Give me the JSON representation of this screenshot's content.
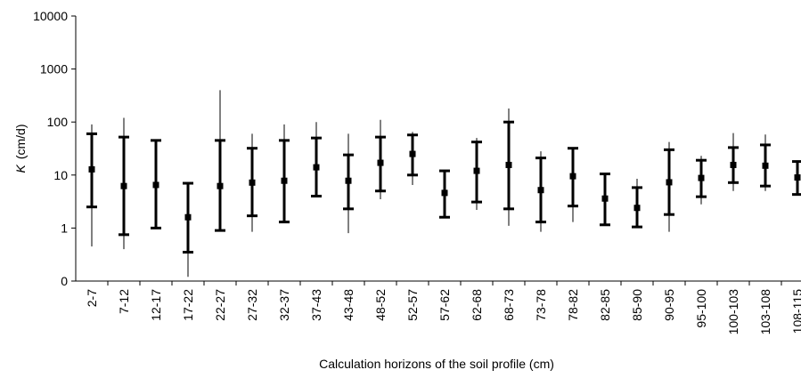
{
  "chart_data": {
    "type": "errorbar",
    "y_label": {
      "symbol": "K",
      "unit": "(cm/d)"
    },
    "x_label": "Calculation horizons of the soil profile (cm)",
    "categories": [
      "2-7",
      "7-12",
      "12-17",
      "17-22",
      "22-27",
      "27-32",
      "32-37",
      "37-43",
      "43-48",
      "48-52",
      "52-57",
      "57-62",
      "62-68",
      "68-73",
      "73-78",
      "78-82",
      "82-85",
      "85-90",
      "90-95",
      "95-100",
      "100-103",
      "103-108",
      "108-115"
    ],
    "values": [
      12.8,
      6.2,
      6.5,
      1.6,
      6.2,
      7.2,
      7.8,
      14,
      7.8,
      17,
      25,
      4.6,
      12,
      15.5,
      5.2,
      9.5,
      3.6,
      2.4,
      7.3,
      8.8,
      15.5,
      15,
      9
    ],
    "bar_low": [
      2.5,
      0.75,
      1.0,
      0.35,
      0.9,
      1.7,
      1.3,
      4,
      2.3,
      5,
      10,
      1.6,
      3.1,
      2.3,
      1.3,
      2.6,
      1.15,
      1.05,
      1.8,
      3.9,
      7.2,
      6.2,
      4.3
    ],
    "bar_high": [
      60,
      52,
      45,
      7,
      45,
      32,
      45,
      50,
      24,
      52,
      57,
      12,
      42,
      100,
      21,
      32,
      10.5,
      5.8,
      30,
      19,
      33,
      37,
      18
    ],
    "whisker_low": [
      0.45,
      0.4,
      1.0,
      0.12,
      0.9,
      0.85,
      1.3,
      4,
      0.8,
      3.5,
      6.5,
      1.6,
      2.2,
      1.1,
      0.85,
      1.3,
      1.15,
      1.05,
      0.85,
      2.8,
      5,
      5,
      4.3
    ],
    "whisker_high": [
      90,
      120,
      45,
      7,
      400,
      60,
      90,
      100,
      60,
      110,
      65,
      12,
      50,
      180,
      28,
      32,
      10.5,
      8.5,
      42,
      23,
      62,
      58,
      18
    ],
    "color": "#000000",
    "log_scale": true,
    "ylim": [
      0.1,
      10000
    ],
    "yticks": [
      {
        "value": 0.1,
        "label": "0"
      },
      1,
      10,
      100,
      1000,
      10000
    ]
  }
}
